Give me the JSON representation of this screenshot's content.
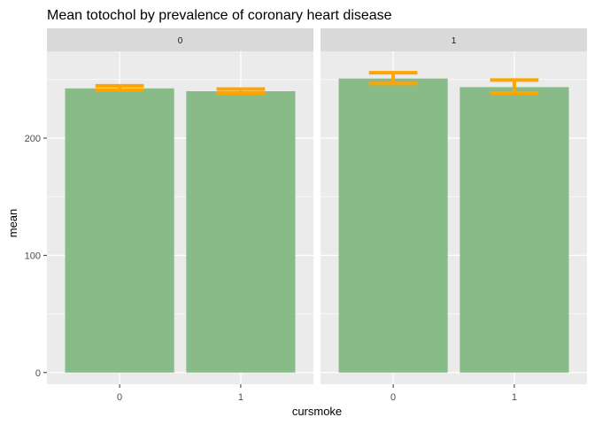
{
  "chart_data": {
    "type": "bar",
    "title": "Mean totochol by prevalence of coronary heart disease",
    "xlabel": "cursmoke",
    "ylabel": "mean",
    "categories": [
      "0",
      "1"
    ],
    "yticks": [
      0,
      100,
      200
    ],
    "ylim": [
      -10,
      274
    ],
    "grid": true,
    "colors": {
      "bar": "#88bb88",
      "error_bar": "#ffa500",
      "panel_bg": "#ebebeb",
      "strip_bg": "#d9d9d9",
      "grid": "#ffffff"
    },
    "facets": [
      {
        "label": "0",
        "bars": [
          {
            "category": "0",
            "value": 242.4,
            "err_low": 241.0,
            "err_high": 244.6
          },
          {
            "category": "1",
            "value": 240.0,
            "err_low": 238.3,
            "err_high": 241.8
          }
        ]
      },
      {
        "label": "1",
        "bars": [
          {
            "category": "0",
            "value": 250.8,
            "err_low": 246.5,
            "err_high": 255.8
          },
          {
            "category": "1",
            "value": 243.5,
            "err_low": 238.5,
            "err_high": 249.5
          }
        ]
      }
    ]
  }
}
